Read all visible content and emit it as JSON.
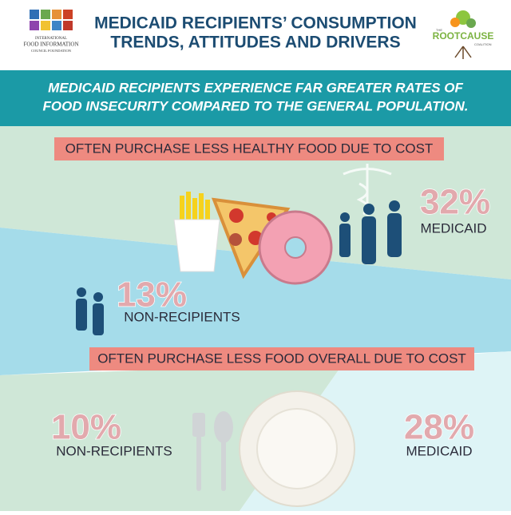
{
  "header": {
    "title_lines": [
      "MEDICAID RECIPIENTS’ CONSUMPTION",
      "TRENDS, ATTITUDES AND DRIVERS"
    ],
    "left_logo": [
      "INTERNATIONAL",
      "FOOD INFORMATION",
      "COUNCIL FOUNDATION"
    ],
    "right_logo": [
      "THE",
      "ROOTCAUSE",
      "COALITION"
    ]
  },
  "banner": {
    "lines": [
      "MEDICAID RECIPIENTS EXPERIENCE FAR GREATER RATES OF",
      "FOOD INSECURITY COMPARED TO THE GENERAL POPULATION."
    ]
  },
  "sections": [
    {
      "heading": "OFTEN PURCHASE LESS HEALTHY FOOD DUE TO COST",
      "medicaid": {
        "value": "32%",
        "label": "MEDICAID"
      },
      "non_recipients": {
        "value": "13%",
        "label": "NON-RECIPIENTS"
      }
    },
    {
      "heading": "OFTEN PURCHASE LESS FOOD OVERALL DUE TO COST",
      "medicaid": {
        "value": "28%",
        "label": "MEDICAID"
      },
      "non_recipients": {
        "value": "10%",
        "label": "NON-RECIPIENTS"
      }
    }
  ]
}
